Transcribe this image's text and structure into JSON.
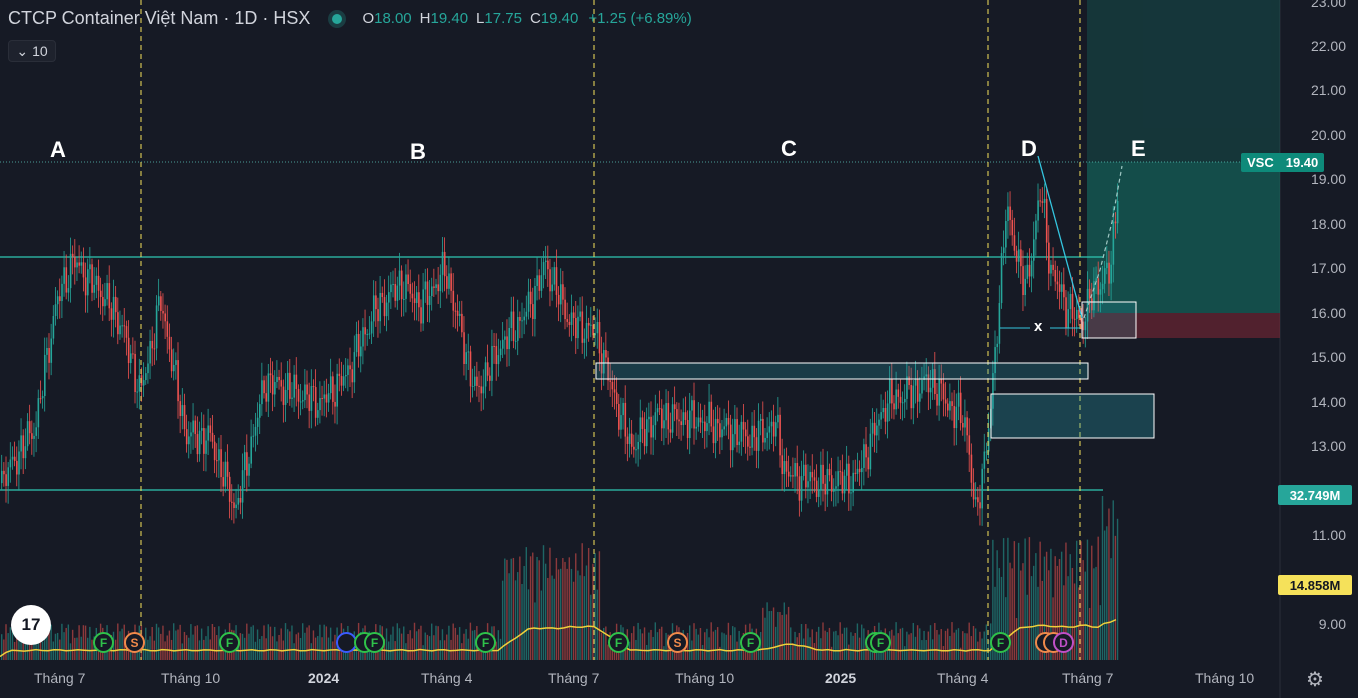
{
  "header": {
    "title": "CTCP Container Việt Nam · 1D · HSX",
    "ohlc": [
      {
        "k": "O",
        "v": "18.00"
      },
      {
        "k": "H",
        "v": "19.40"
      },
      {
        "k": "L",
        "v": "17.75"
      },
      {
        "k": "C",
        "v": "19.40"
      }
    ],
    "change": "+1.25 (+6.89%)",
    "collapse_label": "10"
  },
  "colors": {
    "background": "#161a25",
    "up": "#26a69a",
    "down": "#ef5350",
    "ma": "#f0d03a",
    "cycle_line": "#f5e15a",
    "zone": "#7ff5e5"
  },
  "chart_data": {
    "type": "candlestick",
    "symbol": "VSC",
    "last_price": "19.40",
    "y_ticks": [
      "23.00",
      "22.00",
      "21.00",
      "20.00",
      "19.00",
      "18.00",
      "17.00",
      "16.00",
      "15.00",
      "14.00",
      "13.00",
      "11.00",
      "9.00"
    ],
    "x_ticks": [
      {
        "label": "Tháng 7",
        "bold": false
      },
      {
        "label": "Tháng 10",
        "bold": false
      },
      {
        "label": "2024",
        "bold": true
      },
      {
        "label": "Tháng 4",
        "bold": false
      },
      {
        "label": "Tháng 7",
        "bold": false
      },
      {
        "label": "Tháng 10",
        "bold": false
      },
      {
        "label": "2025",
        "bold": true
      },
      {
        "label": "Tháng 4",
        "bold": false
      },
      {
        "label": "Tháng 7",
        "bold": false
      },
      {
        "label": "Tháng 10",
        "bold": false
      }
    ],
    "volume_tags": [
      {
        "label": "32.749M",
        "color": "#26a69a"
      },
      {
        "label": "14.858M",
        "color": "#f5e15a"
      }
    ],
    "wave_labels": [
      "A",
      "B",
      "C",
      "D",
      "E"
    ],
    "x_marker": "x",
    "anchors": [
      {
        "x": 0,
        "p": 12.2
      },
      {
        "x": 35,
        "p": 13.5
      },
      {
        "x": 55,
        "p": 16.2
      },
      {
        "x": 72,
        "p": 17.2
      },
      {
        "x": 100,
        "p": 16.5
      },
      {
        "x": 120,
        "p": 15.8
      },
      {
        "x": 140,
        "p": 14.2
      },
      {
        "x": 160,
        "p": 16.3
      },
      {
        "x": 185,
        "p": 13.3
      },
      {
        "x": 210,
        "p": 13.2
      },
      {
        "x": 235,
        "p": 11.6
      },
      {
        "x": 265,
        "p": 14.5
      },
      {
        "x": 300,
        "p": 14.2
      },
      {
        "x": 320,
        "p": 14.0
      },
      {
        "x": 345,
        "p": 14.6
      },
      {
        "x": 375,
        "p": 16.1
      },
      {
        "x": 400,
        "p": 16.7
      },
      {
        "x": 420,
        "p": 16.2
      },
      {
        "x": 445,
        "p": 17.0
      },
      {
        "x": 475,
        "p": 14.2
      },
      {
        "x": 500,
        "p": 15.3
      },
      {
        "x": 525,
        "p": 16.0
      },
      {
        "x": 545,
        "p": 17.1
      },
      {
        "x": 570,
        "p": 15.8
      },
      {
        "x": 595,
        "p": 15.6
      },
      {
        "x": 610,
        "p": 14.4
      },
      {
        "x": 630,
        "p": 13.0
      },
      {
        "x": 655,
        "p": 13.7
      },
      {
        "x": 700,
        "p": 13.6
      },
      {
        "x": 750,
        "p": 13.2
      },
      {
        "x": 775,
        "p": 13.5
      },
      {
        "x": 785,
        "p": 12.4
      },
      {
        "x": 820,
        "p": 12.2
      },
      {
        "x": 855,
        "p": 12.3
      },
      {
        "x": 885,
        "p": 14.0
      },
      {
        "x": 905,
        "p": 14.2
      },
      {
        "x": 930,
        "p": 14.5
      },
      {
        "x": 950,
        "p": 13.9
      },
      {
        "x": 965,
        "p": 13.6
      },
      {
        "x": 975,
        "p": 11.4
      },
      {
        "x": 990,
        "p": 13.8
      },
      {
        "x": 1005,
        "p": 18.3
      },
      {
        "x": 1015,
        "p": 17.5
      },
      {
        "x": 1025,
        "p": 16.5
      },
      {
        "x": 1040,
        "p": 18.8
      },
      {
        "x": 1050,
        "p": 17.0
      },
      {
        "x": 1065,
        "p": 16.2
      },
      {
        "x": 1080,
        "p": 15.8
      },
      {
        "x": 1095,
        "p": 16.6
      },
      {
        "x": 1110,
        "p": 17.0
      },
      {
        "x": 1118,
        "p": 19.2
      }
    ],
    "events": [
      {
        "letter": "F",
        "type": "F"
      },
      {
        "letter": "S",
        "type": "S"
      },
      {
        "letter": "F",
        "type": "F"
      },
      {
        "letter": "",
        "type": "I"
      },
      {
        "letter": "",
        "type": "F"
      },
      {
        "letter": "F",
        "type": "F"
      },
      {
        "letter": "F",
        "type": "F"
      },
      {
        "letter": "F",
        "type": "F"
      },
      {
        "letter": "S",
        "type": "S"
      },
      {
        "letter": "F",
        "type": "F"
      },
      {
        "letter": "",
        "type": "F"
      },
      {
        "letter": "F",
        "type": "F"
      },
      {
        "letter": "F",
        "type": "F"
      },
      {
        "letter": "",
        "type": "S"
      },
      {
        "letter": "",
        "type": "S"
      },
      {
        "letter": "D",
        "type": "D"
      }
    ]
  }
}
